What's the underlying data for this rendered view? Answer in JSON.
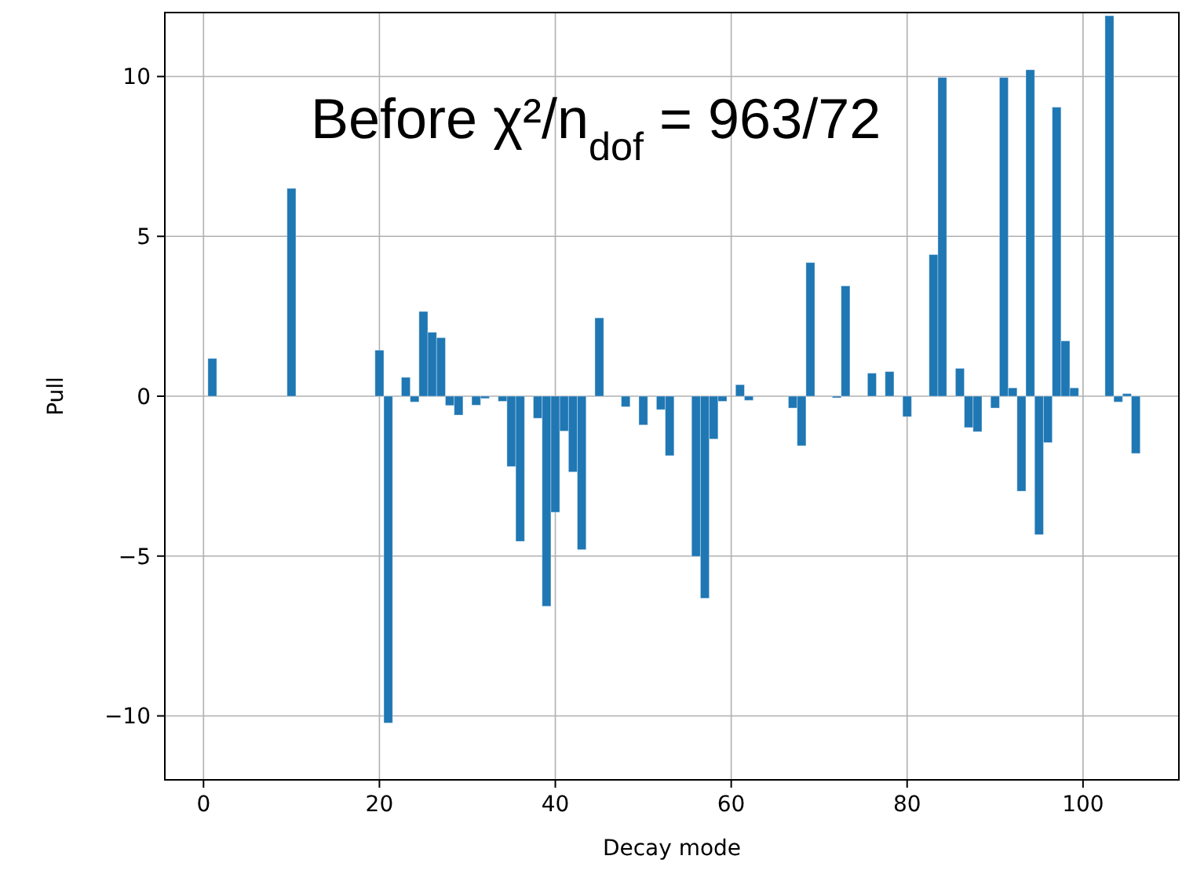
{
  "chart_data": {
    "type": "bar",
    "xlabel": "Decay mode",
    "ylabel": "Pull",
    "annotations": [
      "Before χ²/n$_{dof}$ = 963/72"
    ],
    "x": [
      1,
      10,
      20,
      21,
      23,
      24,
      25,
      26,
      27,
      28,
      29,
      31,
      32,
      34,
      35,
      36,
      38,
      39,
      40,
      41,
      42,
      43,
      45,
      48,
      50,
      52,
      53,
      56,
      57,
      58,
      59,
      61,
      62,
      67,
      68,
      69,
      72,
      73,
      76,
      78,
      80,
      83,
      84,
      86,
      87,
      88,
      90,
      91,
      92,
      93,
      94,
      95,
      96,
      97,
      98,
      99,
      103,
      104,
      105,
      106
    ],
    "values": [
      1.18,
      6.5,
      1.44,
      -10.22,
      0.59,
      -0.18,
      2.65,
      2.0,
      1.83,
      -0.29,
      -0.59,
      -0.28,
      -0.07,
      -0.16,
      -2.2,
      -4.54,
      -0.69,
      -6.57,
      -3.63,
      -1.09,
      -2.37,
      -4.8,
      2.45,
      -0.33,
      -0.9,
      -0.42,
      -1.86,
      -5.01,
      -6.32,
      -1.34,
      -0.16,
      0.36,
      -0.13,
      -0.37,
      -1.55,
      4.18,
      -0.05,
      3.45,
      0.72,
      0.77,
      -0.64,
      4.43,
      9.97,
      0.87,
      -0.98,
      -1.11,
      -0.37,
      9.97,
      0.26,
      -2.97,
      10.21,
      -4.33,
      -1.45,
      9.04,
      1.73,
      0.26,
      11.9,
      -0.18,
      0.08,
      -1.79
    ],
    "color": "#1f77b4",
    "xlim": [
      -4.4,
      110.9
    ],
    "ylim": [
      -12,
      12
    ],
    "xticks": [
      0,
      20,
      40,
      60,
      80,
      100
    ],
    "yticks": [
      {
        "value": -10,
        "label": "−10"
      },
      {
        "value": -5,
        "label": "−5"
      },
      0,
      5,
      10
    ],
    "grid": true
  }
}
